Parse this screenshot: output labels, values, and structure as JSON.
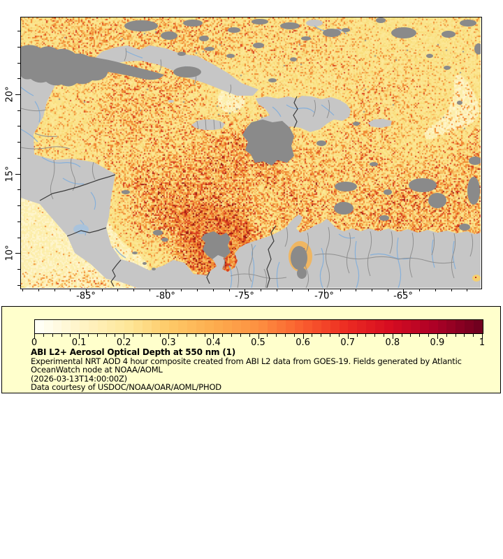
{
  "figure": {
    "map": {
      "lat_tick_labels": [
        "20°",
        "15°",
        "10°"
      ],
      "lon_tick_labels": [
        "-85°",
        "-80°",
        "-75°",
        "-70°",
        "-65°"
      ]
    },
    "colorbar": {
      "min": 0,
      "max": 1,
      "tick_labels": [
        "0",
        "0.1",
        "0.2",
        "0.3",
        "0.4",
        "0.5",
        "0.6",
        "0.7",
        "0.8",
        "0.9",
        "1"
      ],
      "stops": [
        "#fffff5",
        "#fff3c4",
        "#fee79a",
        "#fec966",
        "#fdac4e",
        "#fd9041",
        "#fa5d2e",
        "#ec2c22",
        "#d60c21",
        "#ad0126",
        "#71001f"
      ]
    },
    "caption": {
      "title": "ABI L2+ Aerosol Optical Depth at 550 nm (1)",
      "description": "Experimental NRT AOD 4 hour composite created from ABI L2 data from GOES-19. Fields generated by Atlantic OceanWatch node at NOAA/AOML",
      "timestamp": "(2026-03-13T14:00:00Z)",
      "credit": "Data courtesy of USDOC/NOAA/OAR/AOML/PHOD"
    },
    "colors": {
      "legend_background": "#ffffcc",
      "land": "#c6c6c6",
      "cloud_no_data": "#8a8a8a",
      "river": "#86b0da",
      "admin_border": "#8f8f8f",
      "country_border": "#3c3c3c",
      "ocean_low_aod": "#fbe58c"
    }
  }
}
